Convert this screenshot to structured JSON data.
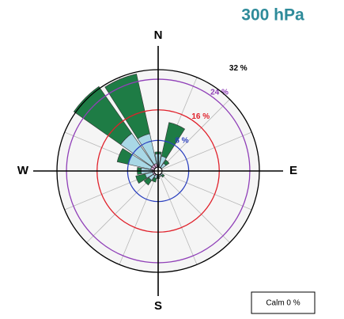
{
  "chart_data": {
    "type": "windrose",
    "title": "300 hPa",
    "title_color": "#2e8b9a",
    "categories": [
      "N",
      null,
      null,
      null,
      "E",
      null,
      null,
      null,
      "S",
      null,
      null,
      null,
      "W",
      null,
      null,
      null
    ],
    "series": [
      {
        "color": "#d8a4d4",
        "values": [
          1.5,
          1,
          1,
          0.5,
          0.5,
          0.5,
          1,
          1,
          1,
          1,
          1.5,
          1.5,
          1.5,
          2,
          2,
          2
        ]
      },
      {
        "color": "#a9d8e6",
        "values": [
          3,
          3,
          1.5,
          0.5,
          0,
          0,
          0.5,
          0.5,
          0.5,
          1,
          1.5,
          2,
          3,
          6,
          10,
          8
        ]
      },
      {
        "color": "#1e7c45",
        "values": [
          0.5,
          9,
          1,
          0,
          0,
          0,
          0.5,
          0,
          0.5,
          1,
          1.5,
          2.5,
          1,
          3,
          15,
          16
        ]
      }
    ],
    "rlim": [
      0,
      26.5
    ],
    "rticks": [
      {
        "value": 8,
        "label": "8 %"
      },
      {
        "value": 16,
        "label": "16 %"
      },
      {
        "value": 24,
        "label": "24 %"
      },
      {
        "value": 32,
        "label": "32 %"
      }
    ],
    "rtick_colors": [
      "#2a3fbf",
      "#e0202a",
      "#9040b8",
      "#000000"
    ],
    "calm_text": "Calm 0 %"
  }
}
